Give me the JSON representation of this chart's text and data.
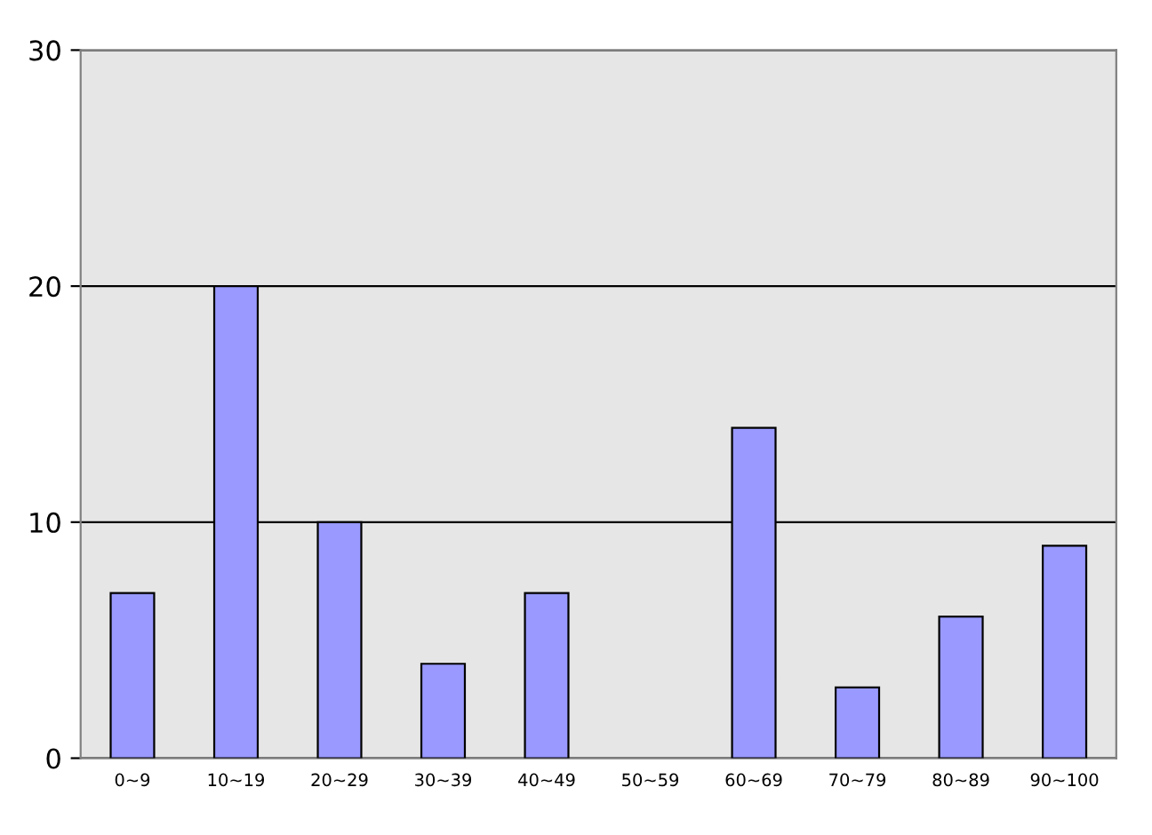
{
  "chart_data": {
    "type": "bar",
    "categories": [
      "0~9",
      "10~19",
      "20~29",
      "30~39",
      "40~49",
      "50~59",
      "60~69",
      "70~79",
      "80~89",
      "90~100"
    ],
    "values": [
      7,
      20,
      10,
      4,
      7,
      0,
      14,
      3,
      6,
      9
    ],
    "color": "#9999ff",
    "ylim": [
      0,
      30
    ],
    "yticks": [
      0,
      10,
      20,
      30
    ],
    "grid": "y"
  }
}
